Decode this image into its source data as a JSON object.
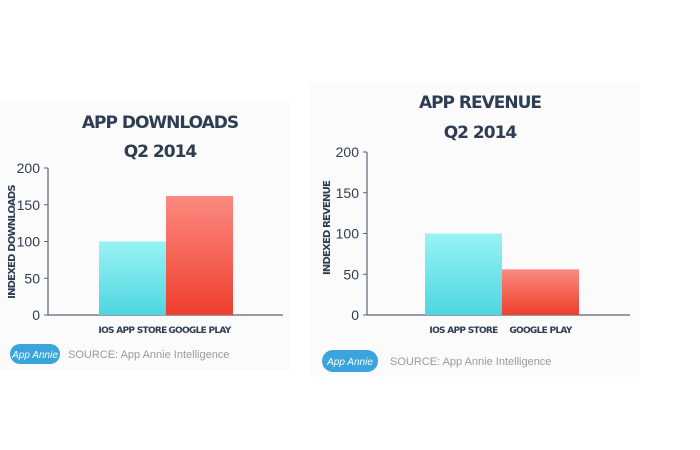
{
  "colors": {
    "ios": "#4fd6df",
    "google": "#ee3f2c",
    "axis": "#5a6578",
    "logo": "#3aa5dc"
  },
  "chart_data": [
    {
      "type": "bar",
      "title": "APP DOWNLOADS",
      "subtitle": "Q2 2014",
      "ylabel": "INDEXED DOWNLOADS",
      "xlabel": "",
      "categories": [
        "IOS APP STORE",
        "GOOGLE PLAY"
      ],
      "values": [
        100,
        162
      ],
      "ylim": [
        0,
        200
      ],
      "yticks": [
        "0",
        "50",
        "100",
        "150",
        "200"
      ],
      "grid": false,
      "logo": "App Annie",
      "source": "SOURCE: App Annie Intelligence"
    },
    {
      "type": "bar",
      "title": "APP REVENUE",
      "subtitle": "Q2 2014",
      "ylabel": "INDEXED REVENUE",
      "xlabel": "",
      "categories": [
        "IOS APP STORE",
        "GOOGLE PLAY"
      ],
      "values": [
        100,
        56
      ],
      "ylim": [
        0,
        200
      ],
      "yticks": [
        "0",
        "50",
        "100",
        "150",
        "200"
      ],
      "grid": false,
      "logo": "App Annie",
      "source": "SOURCE: App Annie Intelligence"
    }
  ]
}
